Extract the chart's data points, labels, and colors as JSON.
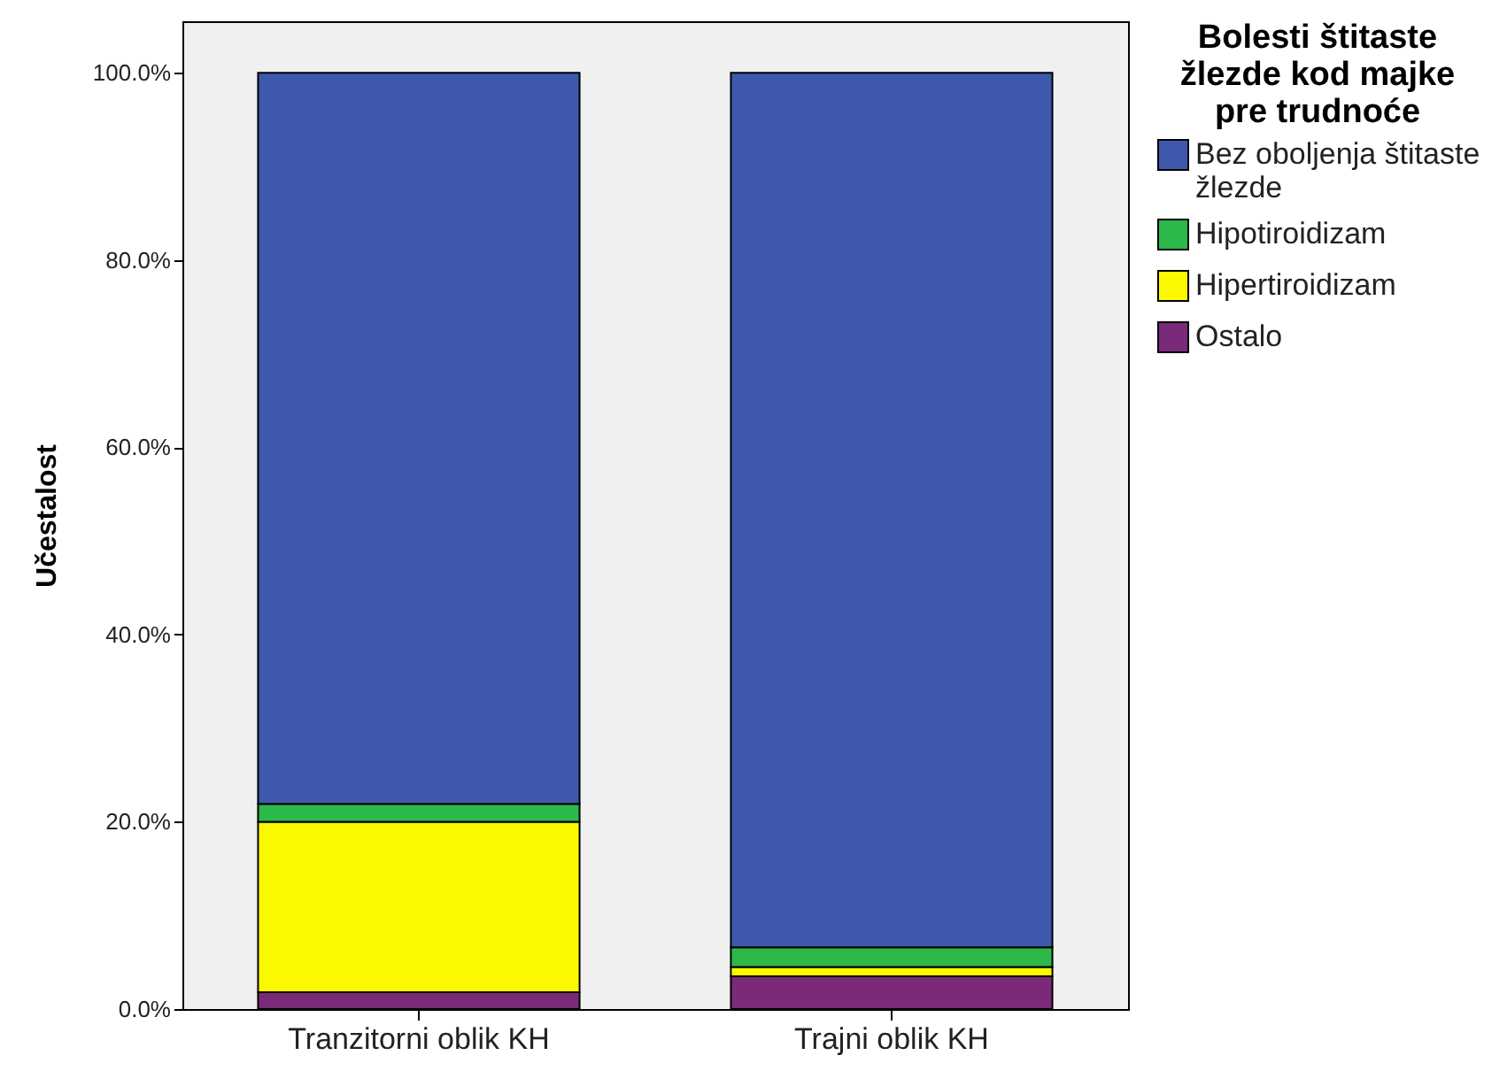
{
  "chart_data": {
    "type": "bar",
    "stacked": true,
    "ylabel": "Učestalost",
    "legend_title": "Bolesti štitaste žlezde kod majke pre trudnoće",
    "legend": "right",
    "categories": [
      "Tranzitorni oblik KH",
      "Trajni oblik KH"
    ],
    "series": [
      {
        "name": "Ostalo",
        "color": "#7b2a7a",
        "values": [
          1.8,
          3.5
        ]
      },
      {
        "name": "Hipertiroidizam",
        "color": "#fbf800",
        "values": [
          18.2,
          1.0
        ]
      },
      {
        "name": "Hipotiroidizam",
        "color": "#2db84a",
        "values": [
          1.9,
          2.1
        ]
      },
      {
        "name": "Bez oboljenja štitaste žlezde",
        "color": "#3e58ac",
        "values": [
          78.1,
          93.4
        ]
      }
    ],
    "ylim": [
      0,
      105.5
    ],
    "yticks": [
      {
        "value": 0,
        "label": "0.0%"
      },
      {
        "value": 20,
        "label": "20.0%"
      },
      {
        "value": 40,
        "label": "40.0%"
      },
      {
        "value": 60,
        "label": "60.0%"
      },
      {
        "value": 80,
        "label": "80.0%"
      },
      {
        "value": 100,
        "label": "100.0%"
      }
    ],
    "grid": false
  }
}
